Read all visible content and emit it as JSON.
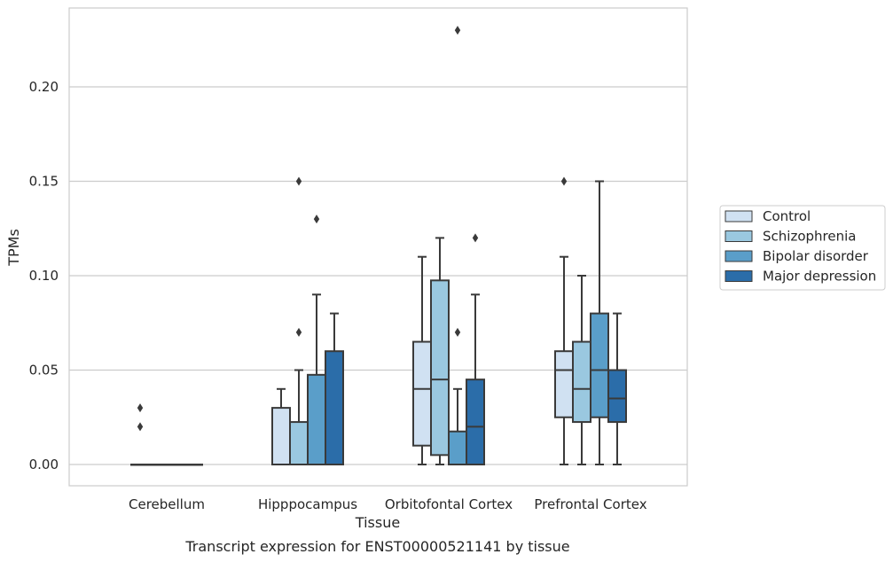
{
  "chart_data": {
    "type": "box",
    "title": "",
    "xlabel": "Tissue",
    "ylabel": "TPMs",
    "caption": "Transcript expression for ENST00000521141 by tissue",
    "ylim": [
      -0.011,
      0.242
    ],
    "yticks": [
      0.0,
      0.05,
      0.1,
      0.15,
      0.2
    ],
    "ytick_labels": [
      "0.00",
      "0.05",
      "0.10",
      "0.15",
      "0.20"
    ],
    "grid": "horizontal",
    "legend_position": "right",
    "categories": [
      "Cerebellum",
      "Hipppocampus",
      "Orbitofontal Cortex",
      "Prefrontal Cortex"
    ],
    "series": [
      {
        "name": "Control",
        "color": "#d0e1f2",
        "boxes": [
          {
            "q1": 0.0,
            "median": 0.0,
            "q3": 0.0,
            "whisker_low": 0.0,
            "whisker_high": 0.0,
            "fliers": [
              0.03,
              0.02
            ]
          },
          {
            "q1": 0.0,
            "median": 0.0,
            "q3": 0.03,
            "whisker_low": 0.0,
            "whisker_high": 0.04,
            "fliers": []
          },
          {
            "q1": 0.01,
            "median": 0.04,
            "q3": 0.065,
            "whisker_low": 0.0,
            "whisker_high": 0.11,
            "fliers": []
          },
          {
            "q1": 0.025,
            "median": 0.05,
            "q3": 0.06,
            "whisker_low": 0.0,
            "whisker_high": 0.11,
            "fliers": [
              0.15
            ]
          }
        ]
      },
      {
        "name": "Schizophrenia",
        "color": "#9ac8e0",
        "boxes": [
          {
            "q1": 0.0,
            "median": 0.0,
            "q3": 0.0,
            "whisker_low": 0.0,
            "whisker_high": 0.0,
            "fliers": []
          },
          {
            "q1": 0.0,
            "median": 0.0,
            "q3": 0.0225,
            "whisker_low": 0.0,
            "whisker_high": 0.05,
            "fliers": [
              0.15,
              0.07
            ]
          },
          {
            "q1": 0.005,
            "median": 0.045,
            "q3": 0.0975,
            "whisker_low": 0.0,
            "whisker_high": 0.12,
            "fliers": []
          },
          {
            "q1": 0.0225,
            "median": 0.04,
            "q3": 0.065,
            "whisker_low": 0.0,
            "whisker_high": 0.1,
            "fliers": []
          }
        ]
      },
      {
        "name": "Bipolar disorder",
        "color": "#5a9ec9",
        "boxes": [
          {
            "q1": 0.0,
            "median": 0.0,
            "q3": 0.0,
            "whisker_low": 0.0,
            "whisker_high": 0.0,
            "fliers": []
          },
          {
            "q1": 0.0,
            "median": 0.0,
            "q3": 0.0475,
            "whisker_low": 0.0,
            "whisker_high": 0.09,
            "fliers": [
              0.13
            ]
          },
          {
            "q1": 0.0,
            "median": 0.0,
            "q3": 0.0175,
            "whisker_low": 0.0,
            "whisker_high": 0.04,
            "fliers": [
              0.23,
              0.07
            ]
          },
          {
            "q1": 0.025,
            "median": 0.05,
            "q3": 0.08,
            "whisker_low": 0.0,
            "whisker_high": 0.15,
            "fliers": []
          }
        ]
      },
      {
        "name": "Major depression",
        "color": "#2b6da9",
        "boxes": [
          {
            "q1": 0.0,
            "median": 0.0,
            "q3": 0.0,
            "whisker_low": 0.0,
            "whisker_high": 0.0,
            "fliers": []
          },
          {
            "q1": 0.0,
            "median": 0.0,
            "q3": 0.06,
            "whisker_low": 0.0,
            "whisker_high": 0.08,
            "fliers": []
          },
          {
            "q1": 0.0,
            "median": 0.02,
            "q3": 0.045,
            "whisker_low": 0.0,
            "whisker_high": 0.09,
            "fliers": [
              0.12
            ]
          },
          {
            "q1": 0.0225,
            "median": 0.035,
            "q3": 0.05,
            "whisker_low": 0.0,
            "whisker_high": 0.08,
            "fliers": []
          }
        ]
      }
    ],
    "colors": {
      "grid": "#cccccc",
      "frame": "#cccccc",
      "line": "#3a3a3a",
      "text": "#262626"
    }
  }
}
